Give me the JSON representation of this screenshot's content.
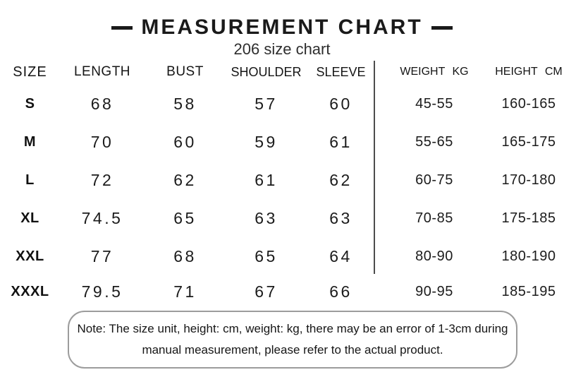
{
  "header": {
    "title": "MEASUREMENT CHART",
    "subtitle": "206 size chart"
  },
  "chart_data": {
    "type": "table",
    "title": "MEASUREMENT CHART",
    "subtitle": "206 size chart",
    "columns": [
      "SIZE",
      "LENGTH",
      "BUST",
      "SHOULDER",
      "SLEEVE",
      "WEIGHT KG",
      "HEIGHT CM"
    ],
    "rows": [
      [
        "S",
        "68",
        "58",
        "57",
        "60",
        "45-55",
        "160-165"
      ],
      [
        "M",
        "70",
        "60",
        "59",
        "61",
        "55-65",
        "165-175"
      ],
      [
        "L",
        "72",
        "62",
        "61",
        "62",
        "60-75",
        "170-180"
      ],
      [
        "XL",
        "74.5",
        "65",
        "63",
        "63",
        "70-85",
        "175-185"
      ],
      [
        "XXL",
        "77",
        "68",
        "65",
        "64",
        "80-90",
        "180-190"
      ],
      [
        "XXXL",
        "79.5",
        "71",
        "67",
        "66",
        "90-95",
        "185-195"
      ]
    ],
    "units": {
      "size_values": "cm",
      "weight": "kg",
      "height": "cm"
    }
  },
  "note": {
    "line1": "Note: The size unit, height: cm, weight: kg, there may be an error of 1-3cm during",
    "line2": "manual measurement, please refer to the actual product."
  },
  "colors": {
    "text": "#1c1c1c",
    "title": "#1a1a1a",
    "divider": "#4c4c4c",
    "note_border": "#9c9c9c",
    "background": "#ffffff"
  }
}
